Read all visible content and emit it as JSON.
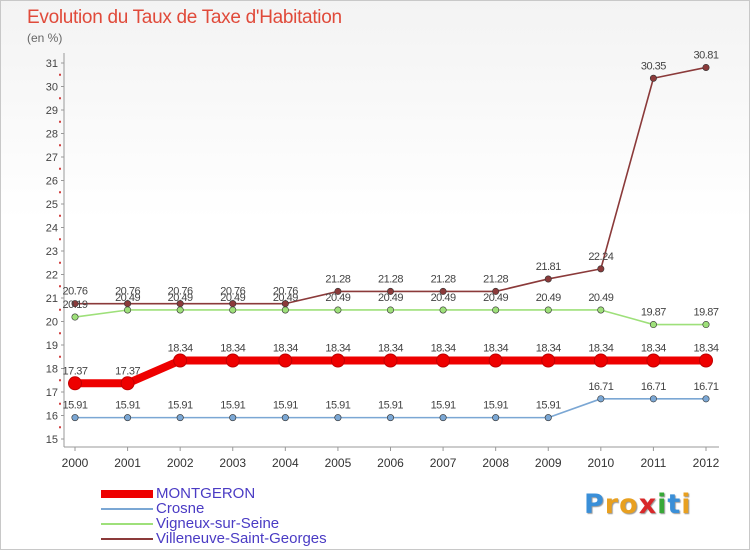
{
  "chart_data": {
    "type": "line",
    "title": "Evolution du Taux de Taxe d'Habitation",
    "unit_label": "(en %)",
    "x": [
      "2000",
      "2001",
      "2002",
      "2003",
      "2004",
      "2005",
      "2006",
      "2007",
      "2008",
      "2009",
      "2010",
      "2011",
      "2012"
    ],
    "ylim": [
      15,
      31
    ],
    "yticks": [
      15,
      16,
      17,
      18,
      19,
      20,
      21,
      22,
      23,
      24,
      25,
      26,
      27,
      28,
      29,
      30,
      31
    ],
    "grid": false,
    "legend_position": "bottom-left",
    "series": [
      {
        "name": "MONTGERON",
        "color": "#ee0000",
        "values": [
          17.37,
          17.37,
          18.34,
          18.34,
          18.34,
          18.34,
          18.34,
          18.34,
          18.34,
          18.34,
          18.34,
          18.34,
          18.34
        ],
        "labels": [
          "17.37",
          "17.37",
          "18.34",
          "18.34",
          "18.34",
          "18.34",
          "18.34",
          "18.34",
          "18.34",
          "18.34",
          "18.34",
          "18.34",
          "18.34"
        ]
      },
      {
        "name": "Crosne",
        "color": "#7ba7d4",
        "values": [
          15.91,
          15.91,
          15.91,
          15.91,
          15.91,
          15.91,
          15.91,
          15.91,
          15.91,
          15.91,
          16.71,
          16.71,
          16.71
        ],
        "labels": [
          "15.91",
          "15.91",
          "15.91",
          "15.91",
          "15.91",
          "15.91",
          "15.91",
          "15.91",
          "15.91",
          "15.91",
          "16.71",
          "16.71",
          "16.71"
        ]
      },
      {
        "name": "Vigneux-sur-Seine",
        "color": "#9ee07a",
        "values": [
          20.19,
          20.49,
          20.49,
          20.49,
          20.49,
          20.49,
          20.49,
          20.49,
          20.49,
          20.49,
          20.49,
          19.87,
          19.87
        ],
        "labels": [
          "20.19",
          "20.49",
          "20.49",
          "20.49",
          "20.49",
          "20.49",
          "20.49",
          "20.49",
          "20.49",
          "20.49",
          "20.49",
          "19.87",
          "19.87"
        ]
      },
      {
        "name": "Villeneuve-Saint-Georges",
        "color": "#8b3a3a",
        "values": [
          20.76,
          20.76,
          20.76,
          20.76,
          20.76,
          21.28,
          21.28,
          21.28,
          21.28,
          21.81,
          22.24,
          30.35,
          30.81
        ],
        "labels": [
          "20.76",
          "20.76",
          "20.76",
          "20.76",
          "20.76",
          "21.28",
          "21.28",
          "21.28",
          "21.28",
          "21.81",
          "22.24",
          "30.35",
          "30.81"
        ]
      }
    ]
  },
  "brand": {
    "letters": [
      "P",
      "r",
      "o",
      "x",
      "i",
      "t",
      "i"
    ],
    "colors": [
      "#3a8fd8",
      "#e8a020",
      "#e8a020",
      "#d8282a",
      "#38a838",
      "#3a8fd8",
      "#e8a020"
    ]
  }
}
